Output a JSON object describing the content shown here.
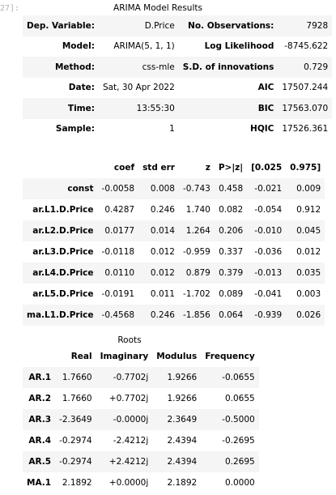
{
  "prompt": "27]:",
  "summary": {
    "title": "ARIMA Model Results",
    "rows": [
      {
        "l1": "Dep. Variable:",
        "v1": "D.Price",
        "l2": "No. Observations:",
        "v2": "7928"
      },
      {
        "l1": "Model:",
        "v1": "ARIMA(5, 1, 1)",
        "l2": "Log Likelihood",
        "v2": "-8745.622"
      },
      {
        "l1": "Method:",
        "v1": "css-mle",
        "l2": "S.D. of innovations",
        "v2": "0.729"
      },
      {
        "l1": "Date:",
        "v1": "Sat, 30 Apr 2022",
        "l2": "AIC",
        "v2": "17507.244"
      },
      {
        "l1": "Time:",
        "v1": "13:55:30",
        "l2": "BIC",
        "v2": "17563.070"
      },
      {
        "l1": "Sample:",
        "v1": "1",
        "l2": "HQIC",
        "v2": "17526.361"
      }
    ]
  },
  "coef": {
    "headers": [
      "",
      "coef",
      "std err",
      "z",
      "P>|z|",
      "[0.025",
      "0.975]"
    ],
    "rows": [
      {
        "name": "const",
        "vals": [
          "-0.0058",
          "0.008",
          "-0.743",
          "0.458",
          "-0.021",
          "0.009"
        ]
      },
      {
        "name": "ar.L1.D.Price",
        "vals": [
          "0.4287",
          "0.246",
          "1.740",
          "0.082",
          "-0.054",
          "0.912"
        ]
      },
      {
        "name": "ar.L2.D.Price",
        "vals": [
          "0.0177",
          "0.014",
          "1.264",
          "0.206",
          "-0.010",
          "0.045"
        ]
      },
      {
        "name": "ar.L3.D.Price",
        "vals": [
          "-0.0118",
          "0.012",
          "-0.959",
          "0.337",
          "-0.036",
          "0.012"
        ]
      },
      {
        "name": "ar.L4.D.Price",
        "vals": [
          "0.0110",
          "0.012",
          "0.879",
          "0.379",
          "-0.013",
          "0.035"
        ]
      },
      {
        "name": "ar.L5.D.Price",
        "vals": [
          "-0.0191",
          "0.011",
          "-1.702",
          "0.089",
          "-0.041",
          "0.003"
        ]
      },
      {
        "name": "ma.L1.D.Price",
        "vals": [
          "-0.4568",
          "0.246",
          "-1.856",
          "0.064",
          "-0.939",
          "0.026"
        ]
      }
    ]
  },
  "roots": {
    "title": "Roots",
    "headers": [
      "",
      "Real",
      "Imaginary",
      "Modulus",
      "Frequency"
    ],
    "rows": [
      {
        "name": "AR.1",
        "vals": [
          "1.7660",
          "-0.7702j",
          "1.9266",
          "-0.0655"
        ]
      },
      {
        "name": "AR.2",
        "vals": [
          "1.7660",
          "+0.7702j",
          "1.9266",
          "0.0655"
        ]
      },
      {
        "name": "AR.3",
        "vals": [
          "-2.3649",
          "-0.0000j",
          "2.3649",
          "-0.5000"
        ]
      },
      {
        "name": "AR.4",
        "vals": [
          "-0.2974",
          "-2.4212j",
          "2.4394",
          "-0.2695"
        ]
      },
      {
        "name": "AR.5",
        "vals": [
          "-0.2974",
          "+2.4212j",
          "2.4394",
          "0.2695"
        ]
      },
      {
        "name": "MA.1",
        "vals": [
          "2.1892",
          "+0.0000j",
          "2.1892",
          "0.0000"
        ]
      }
    ]
  }
}
